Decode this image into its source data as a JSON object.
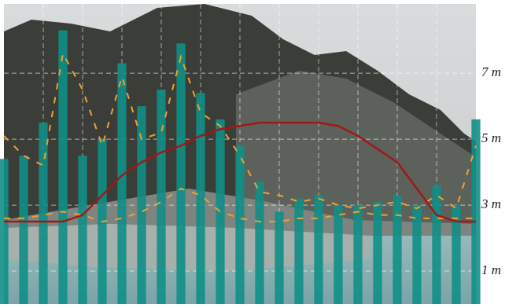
{
  "chart_data": {
    "type": "line",
    "x": [
      0,
      1,
      2,
      3,
      4,
      5,
      6,
      7,
      8,
      9,
      10,
      11,
      12,
      13,
      14,
      15,
      16,
      17,
      18,
      19,
      20,
      21,
      22,
      23,
      24
    ],
    "xlim": [
      0,
      24
    ],
    "ylim": [
      0,
      9.1
    ],
    "yticks": [
      {
        "value": 1,
        "label": "1 m"
      },
      {
        "value": 3,
        "label": "3 m"
      },
      {
        "value": 5,
        "label": "5 m"
      },
      {
        "value": 7,
        "label": "7 m"
      }
    ],
    "grid": true,
    "series": [
      {
        "color": "#0f8f86",
        "kind": "bars",
        "values": [
          4.4,
          4.5,
          5.5,
          8.3,
          4.5,
          5.0,
          7.3,
          6.0,
          6.5,
          7.9,
          6.4,
          5.6,
          4.8,
          3.7,
          2.8,
          3.2,
          3.3,
          3.0,
          3.0,
          3.1,
          3.3,
          3.0,
          3.6,
          3.0,
          5.6
        ]
      },
      {
        "color": "#f0a030",
        "dashed": true,
        "values": [
          5.1,
          4.5,
          4.2,
          7.6,
          6.5,
          4.8,
          6.9,
          5.0,
          5.2,
          7.5,
          5.8,
          5.4,
          4.5,
          3.4,
          3.3,
          3.1,
          3.2,
          3.0,
          2.9,
          3.0,
          3.1,
          2.9,
          3.3,
          2.9,
          4.8
        ]
      },
      {
        "color": "#f0a030",
        "dashed": true,
        "values": [
          2.6,
          2.6,
          2.7,
          2.8,
          2.7,
          2.5,
          2.6,
          2.8,
          3.1,
          3.5,
          3.3,
          2.8,
          2.6,
          2.5,
          2.5,
          2.6,
          2.6,
          2.7,
          2.8,
          2.7,
          2.7,
          2.6,
          2.6,
          2.6,
          2.6
        ]
      },
      {
        "color": "#a01818",
        "values": [
          2.5,
          2.5,
          2.5,
          2.5,
          2.7,
          3.3,
          3.9,
          4.3,
          4.6,
          4.8,
          5.1,
          5.3,
          5.4,
          5.5,
          5.5,
          5.5,
          5.5,
          5.4,
          5.1,
          4.7,
          4.3,
          3.5,
          2.7,
          2.5,
          2.5
        ]
      }
    ]
  }
}
